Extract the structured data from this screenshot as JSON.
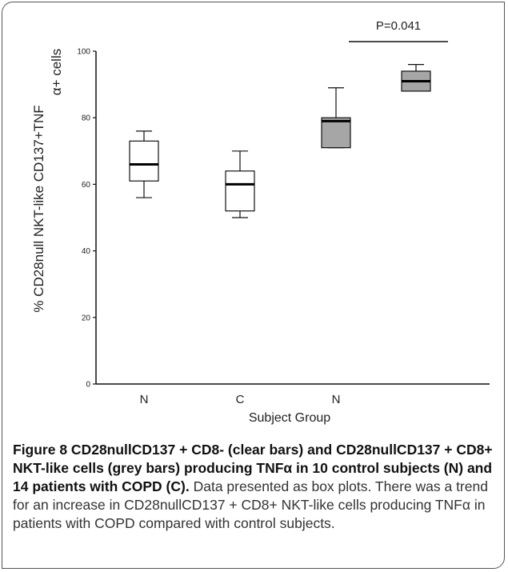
{
  "chart_data": {
    "type": "box",
    "ylabel_line1": "α+ cells",
    "ylabel_line2": "% CD28null NKT-like CD137+TNF",
    "xlabel": "Subject Group",
    "ylim": [
      0,
      100
    ],
    "yticks": [
      0,
      20,
      40,
      60,
      80,
      100
    ],
    "groups": [
      {
        "label": "N",
        "fill": "#ffffff",
        "min": 56,
        "q1": 61,
        "median": 66,
        "q3": 73,
        "max": 76
      },
      {
        "label": "C",
        "fill": "#ffffff",
        "min": 50,
        "q1": 52,
        "median": 60,
        "q3": 64,
        "max": 70
      },
      {
        "label": "N",
        "fill": "#a6a6a6",
        "min": 71,
        "q1": 71,
        "median": 79,
        "q3": 80,
        "max": 89
      },
      {
        "label": "",
        "fill": "#a6a6a6",
        "min": 88,
        "q1": 88,
        "median": 91,
        "q3": 94,
        "max": 96
      }
    ],
    "annotation": {
      "text": "P=0.041",
      "from_group": 2,
      "to_group": 3
    }
  },
  "caption": {
    "heading": "Figure 8 CD28nullCD137 + CD8- (clear bars) and CD28nullCD137 + CD8+ NKT-like cells (grey bars) producing TNFα in 10 control subjects (N) and 14 patients with COPD (C).",
    "body": "Data presented as box plots. There was a trend for an increase in CD28nullCD137 + CD8+ NKT-like cells producing TNFα in patients with COPD compared with control subjects."
  }
}
